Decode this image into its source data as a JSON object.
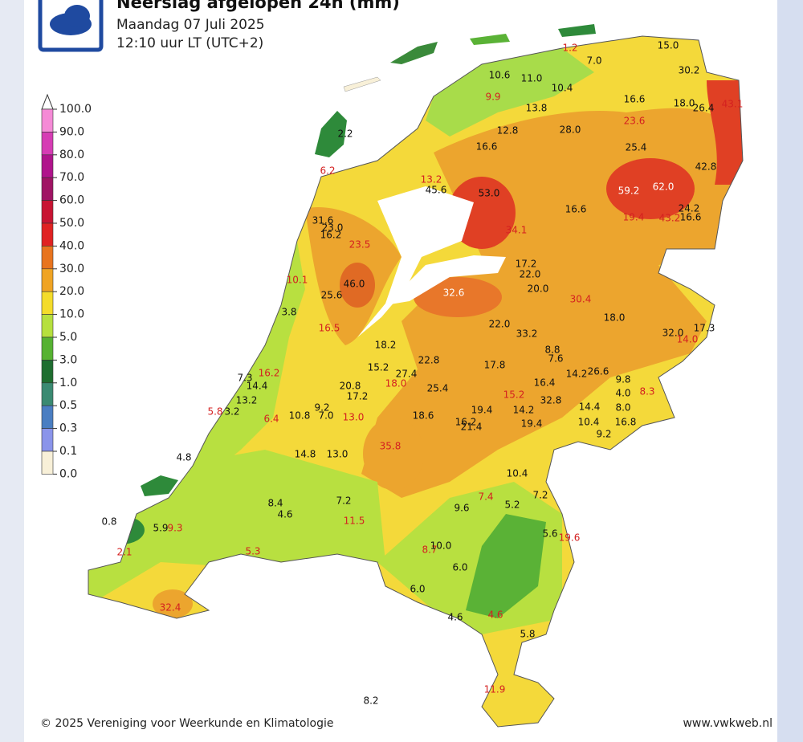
{
  "title": "Neerslag afgelopen 24h (mm)",
  "subtitle": "Maandag 07 Juli 2025",
  "time": "12:10 uur LT (UTC+2)",
  "legend": {
    "ticks": [
      {
        "value": 100,
        "label": "100.0"
      },
      {
        "value": 90,
        "label": "90.0"
      },
      {
        "value": 80,
        "label": "80.0"
      },
      {
        "value": 70,
        "label": "70.0"
      },
      {
        "value": 60,
        "label": "60.0"
      },
      {
        "value": 50,
        "label": "50.0"
      },
      {
        "value": 40,
        "label": "40.0"
      },
      {
        "value": 30,
        "label": "30.0"
      },
      {
        "value": 20,
        "label": "20.0"
      },
      {
        "value": 10,
        "label": "10.0"
      },
      {
        "value": 5,
        "label": "5.0"
      },
      {
        "value": 3,
        "label": "3.0"
      },
      {
        "value": 1,
        "label": "1.0"
      },
      {
        "value": 0.5,
        "label": "0.5"
      },
      {
        "value": 0.3,
        "label": "0.3"
      },
      {
        "value": 0.1,
        "label": "0.1"
      },
      {
        "value": 0,
        "label": "0.0"
      }
    ],
    "colors": [
      "#f58ad6",
      "#d63cb4",
      "#b0148c",
      "#a01464",
      "#c81432",
      "#e02222",
      "#e8741e",
      "#f0a424",
      "#f4dc2a",
      "#b6e03e",
      "#56b232",
      "#1e6e30",
      "#3a8a72",
      "#4a7ec2",
      "#8a94ea",
      "#f8f0d8"
    ]
  },
  "stations": [
    {
      "label": "1.2",
      "color": "#d42020"
    },
    {
      "label": "7.0",
      "color": "#111"
    },
    {
      "label": "15.0",
      "color": "#111"
    },
    {
      "label": "30.2",
      "color": "#111"
    },
    {
      "label": "10.6",
      "color": "#111"
    },
    {
      "label": "11.0",
      "color": "#111"
    },
    {
      "label": "10.4",
      "color": "#111"
    },
    {
      "label": "9.9",
      "color": "#d42020"
    },
    {
      "label": "13.8",
      "color": "#111"
    },
    {
      "label": "16.6",
      "color": "#111"
    },
    {
      "label": "18.0",
      "color": "#111"
    },
    {
      "label": "26.4",
      "color": "#111"
    },
    {
      "label": "43.1",
      "color": "#d42020"
    },
    {
      "label": "23.6",
      "color": "#d42020"
    },
    {
      "label": "12.8",
      "color": "#111"
    },
    {
      "label": "28.0",
      "color": "#111"
    },
    {
      "label": "16.6",
      "color": "#111"
    },
    {
      "label": "25.4",
      "color": "#111"
    },
    {
      "label": "42.8",
      "color": "#111"
    },
    {
      "label": "2.2",
      "color": "#111"
    },
    {
      "label": "6.2",
      "color": "#d42020"
    },
    {
      "label": "13.2",
      "color": "#d42020"
    },
    {
      "label": "45.6",
      "color": "#111"
    },
    {
      "label": "53.0",
      "color": "#111"
    },
    {
      "label": "59.2",
      "color": "#fff"
    },
    {
      "label": "62.0",
      "color": "#fff"
    },
    {
      "label": "16.6",
      "color": "#111"
    },
    {
      "label": "24.2",
      "color": "#111"
    },
    {
      "label": "19.4",
      "color": "#d42020"
    },
    {
      "label": "43.2",
      "color": "#d42020"
    },
    {
      "label": "16.6",
      "color": "#111"
    },
    {
      "label": "34.1",
      "color": "#d42020"
    },
    {
      "label": "31.6",
      "color": "#111"
    },
    {
      "label": "23.0",
      "color": "#111"
    },
    {
      "label": "16.2",
      "color": "#111"
    },
    {
      "label": "23.5",
      "color": "#d42020"
    },
    {
      "label": "17.2",
      "color": "#111"
    },
    {
      "label": "22.0",
      "color": "#111"
    },
    {
      "label": "20.0",
      "color": "#111"
    },
    {
      "label": "10.1",
      "color": "#d42020"
    },
    {
      "label": "46.0",
      "color": "#111"
    },
    {
      "label": "25.6",
      "color": "#111"
    },
    {
      "label": "32.6",
      "color": "#fff"
    },
    {
      "label": "30.4",
      "color": "#d42020"
    },
    {
      "label": "3.8",
      "color": "#111"
    },
    {
      "label": "18.0",
      "color": "#111"
    },
    {
      "label": "16.5",
      "color": "#d42020"
    },
    {
      "label": "22.0",
      "color": "#111"
    },
    {
      "label": "33.2",
      "color": "#111"
    },
    {
      "label": "32.0",
      "color": "#111"
    },
    {
      "label": "14.0",
      "color": "#d42020"
    },
    {
      "label": "17.3",
      "color": "#111"
    },
    {
      "label": "18.2",
      "color": "#111"
    },
    {
      "label": "8.8",
      "color": "#111"
    },
    {
      "label": "7.6",
      "color": "#111"
    },
    {
      "label": "22.8",
      "color": "#111"
    },
    {
      "label": "15.2",
      "color": "#111"
    },
    {
      "label": "27.4",
      "color": "#111"
    },
    {
      "label": "17.8",
      "color": "#111"
    },
    {
      "label": "14.2",
      "color": "#111"
    },
    {
      "label": "26.6",
      "color": "#111"
    },
    {
      "label": "16.2",
      "color": "#d42020"
    },
    {
      "label": "7.3",
      "color": "#111"
    },
    {
      "label": "14.4",
      "color": "#111"
    },
    {
      "label": "18.0",
      "color": "#d42020"
    },
    {
      "label": "25.4",
      "color": "#111"
    },
    {
      "label": "16.4",
      "color": "#111"
    },
    {
      "label": "9.8",
      "color": "#111"
    },
    {
      "label": "20.8",
      "color": "#111"
    },
    {
      "label": "17.2",
      "color": "#111"
    },
    {
      "label": "4.0",
      "color": "#111"
    },
    {
      "label": "8.3",
      "color": "#d42020"
    },
    {
      "label": "13.2",
      "color": "#111"
    },
    {
      "label": "15.2",
      "color": "#d42020"
    },
    {
      "label": "32.8",
      "color": "#111"
    },
    {
      "label": "9.2",
      "color": "#111"
    },
    {
      "label": "19.4",
      "color": "#111"
    },
    {
      "label": "14.2",
      "color": "#111"
    },
    {
      "label": "14.4",
      "color": "#111"
    },
    {
      "label": "8.0",
      "color": "#111"
    },
    {
      "label": "5.8",
      "color": "#d42020"
    },
    {
      "label": "3.2",
      "color": "#111"
    },
    {
      "label": "6.4",
      "color": "#d42020"
    },
    {
      "label": "10.8",
      "color": "#111"
    },
    {
      "label": "7.0",
      "color": "#111"
    },
    {
      "label": "13.0",
      "color": "#d42020"
    },
    {
      "label": "18.6",
      "color": "#111"
    },
    {
      "label": "16.2",
      "color": "#111"
    },
    {
      "label": "21.4",
      "color": "#111"
    },
    {
      "label": "19.4",
      "color": "#111"
    },
    {
      "label": "10.4",
      "color": "#111"
    },
    {
      "label": "16.8",
      "color": "#111"
    },
    {
      "label": "9.2",
      "color": "#111"
    },
    {
      "label": "35.8",
      "color": "#d42020"
    },
    {
      "label": "14.8",
      "color": "#111"
    },
    {
      "label": "13.0",
      "color": "#111"
    },
    {
      "label": "4.8",
      "color": "#111"
    },
    {
      "label": "10.4",
      "color": "#111"
    },
    {
      "label": "7.2",
      "color": "#111"
    },
    {
      "label": "8.4",
      "color": "#111"
    },
    {
      "label": "7.4",
      "color": "#d42020"
    },
    {
      "label": "7.2",
      "color": "#111"
    },
    {
      "label": "5.2",
      "color": "#111"
    },
    {
      "label": "9.6",
      "color": "#111"
    },
    {
      "label": "4.6",
      "color": "#111"
    },
    {
      "label": "11.5",
      "color": "#d42020"
    },
    {
      "label": "0.8",
      "color": "#111"
    },
    {
      "label": "5.9",
      "color": "#111"
    },
    {
      "label": "9.3",
      "color": "#d42020"
    },
    {
      "label": "5.6",
      "color": "#111"
    },
    {
      "label": "19.6",
      "color": "#d42020"
    },
    {
      "label": "2.1",
      "color": "#d42020"
    },
    {
      "label": "5.3",
      "color": "#d42020"
    },
    {
      "label": "8.7",
      "color": "#d42020"
    },
    {
      "label": "10.0",
      "color": "#111"
    },
    {
      "label": "6.0",
      "color": "#111"
    },
    {
      "label": "6.0",
      "color": "#111"
    },
    {
      "label": "32.4",
      "color": "#d42020"
    },
    {
      "label": "4.6",
      "color": "#111"
    },
    {
      "label": "4.6",
      "color": "#d42020"
    },
    {
      "label": "5.8",
      "color": "#111"
    },
    {
      "label": "11.9",
      "color": "#d42020"
    },
    {
      "label": "8.2",
      "color": "#111"
    }
  ],
  "footer": {
    "copyright": "© 2025 Vereniging voor Weerkunde en Klimatologie",
    "website": "www.vwkweb.nl"
  }
}
